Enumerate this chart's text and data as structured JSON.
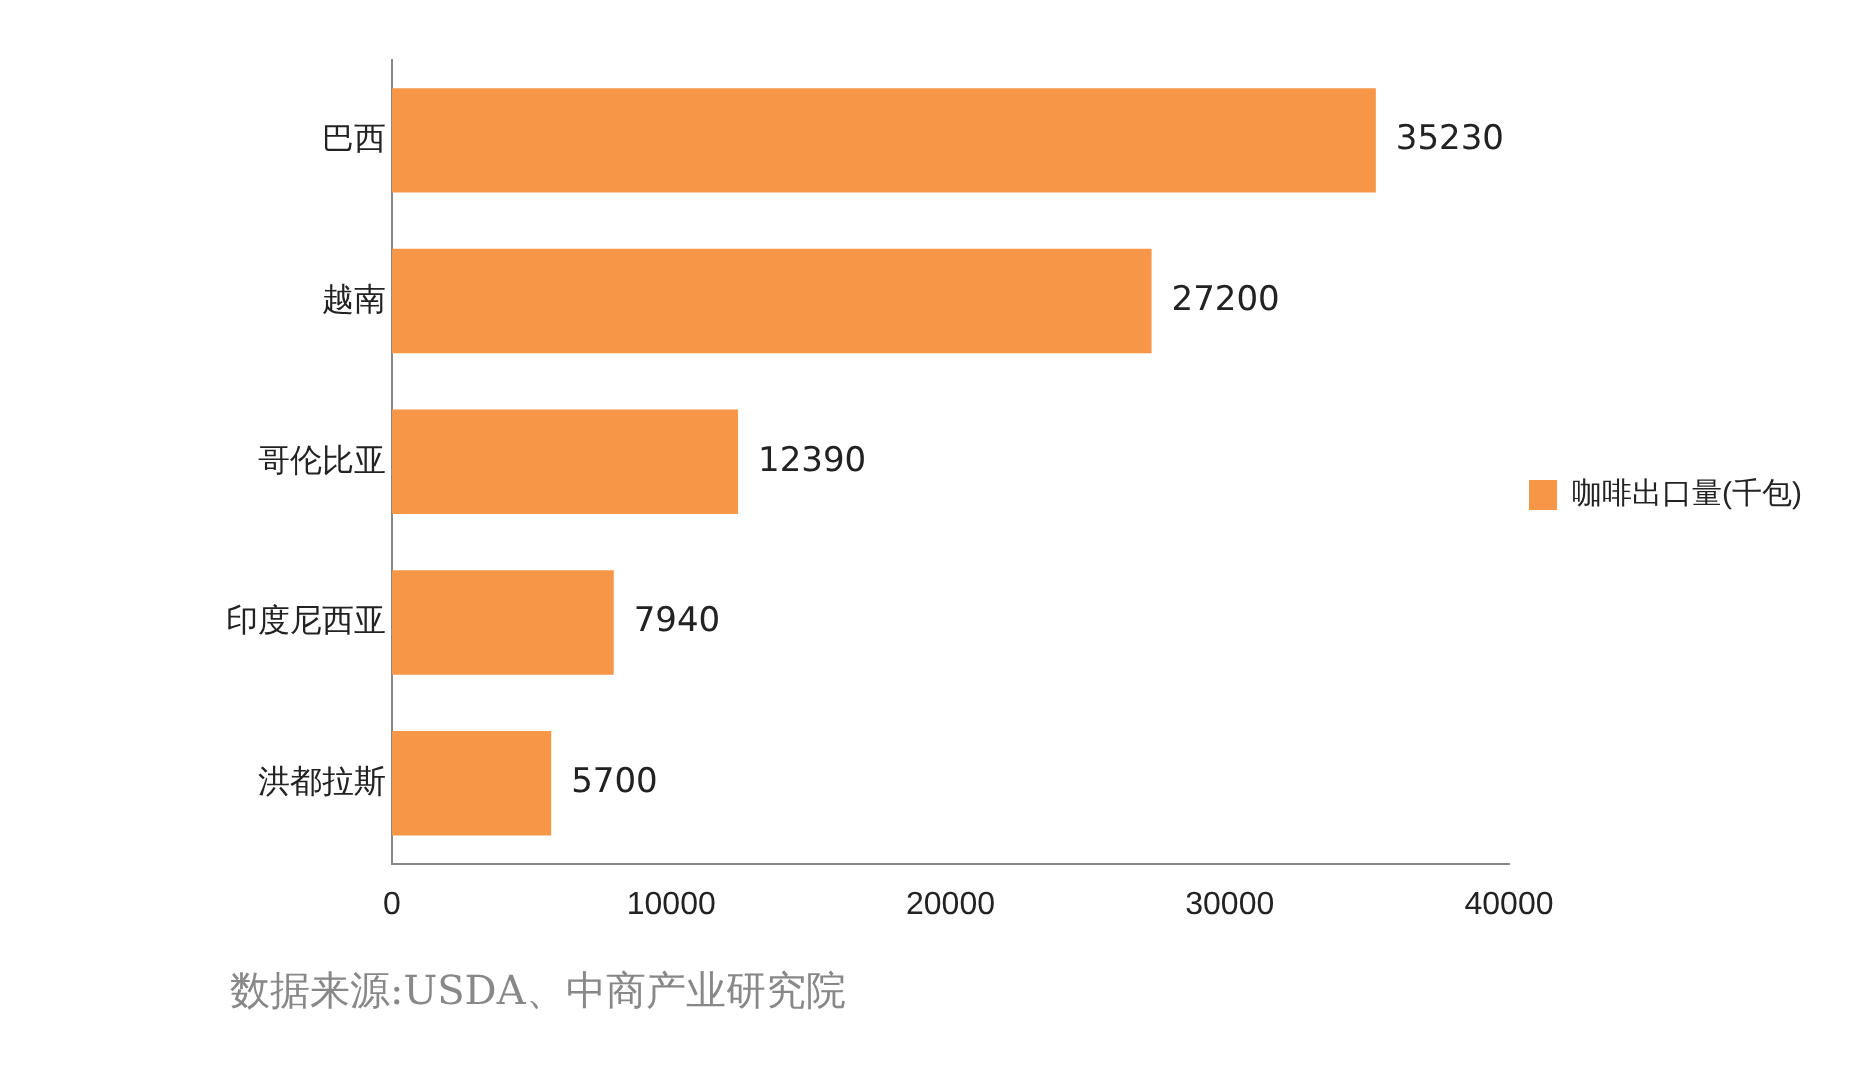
{
  "chart_data": {
    "type": "bar",
    "orientation": "horizontal",
    "categories": [
      "巴西",
      "越南",
      "哥伦比亚",
      "印度尼西亚",
      "洪都拉斯"
    ],
    "series": [
      {
        "name": "咖啡出口量(千包)",
        "color": "#f79646",
        "values": [
          35230,
          27200,
          12390,
          7940,
          5700
        ]
      }
    ],
    "xlim": [
      0,
      40000
    ],
    "xticks": [
      0,
      10000,
      20000,
      30000,
      40000
    ],
    "grid": false,
    "legend": "right",
    "data_labels": true,
    "annotations": [
      "数据来源:USDA、中商产业研究院"
    ]
  }
}
